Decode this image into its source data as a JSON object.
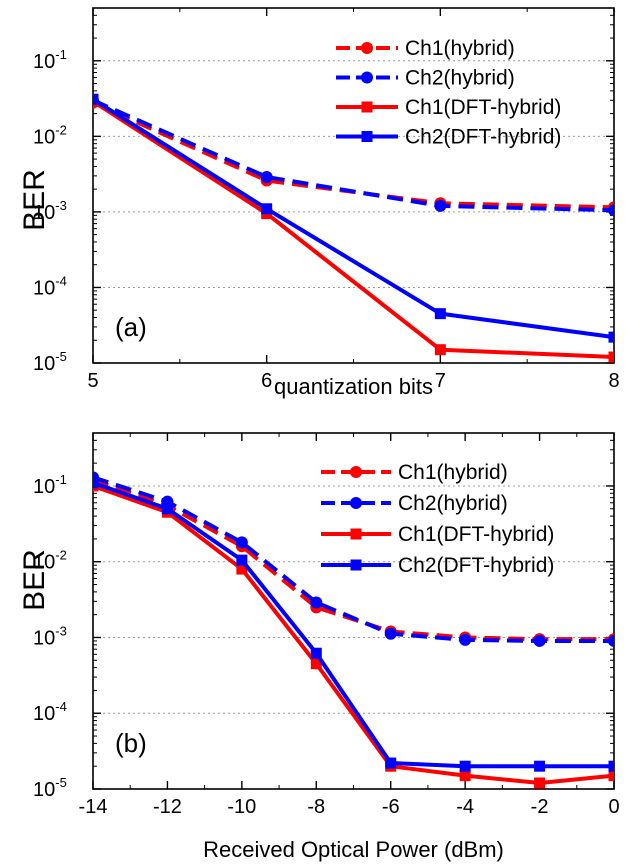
{
  "chart_data": [
    {
      "type": "line",
      "panel_label": "(a)",
      "xlabel": "quantization bits",
      "ylabel": "BER",
      "x_scale": "linear",
      "y_scale": "log",
      "xlim": [
        5,
        8
      ],
      "ylim": [
        1e-05,
        0.5
      ],
      "x_ticks": [
        5,
        6,
        7,
        8
      ],
      "x_tick_labels": [
        "5",
        "6",
        "7",
        "8"
      ],
      "y_ticks": [
        1e-05,
        0.0001,
        0.001,
        0.01,
        0.1
      ],
      "y_tick_labels": [
        [
          "10",
          "-5"
        ],
        [
          "10",
          "-4"
        ],
        [
          "10",
          "-3"
        ],
        [
          "10",
          "-2"
        ],
        [
          "10",
          "-1"
        ]
      ],
      "grid": "horizontal dotted at decades",
      "legend_position": "top-right",
      "x": [
        5,
        6,
        7,
        8
      ],
      "series": [
        {
          "name": "Ch1(hybrid)",
          "color": "#ff0000",
          "dash": "dashed",
          "marker": "circle",
          "values": [
            0.028,
            0.0026,
            0.0013,
            0.00115
          ]
        },
        {
          "name": "Ch2(hybrid)",
          "color": "#0000ff",
          "dash": "dashed",
          "marker": "circle",
          "values": [
            0.03,
            0.0029,
            0.0012,
            0.00105
          ]
        },
        {
          "name": "Ch1(DFT-hybrid)",
          "color": "#ff0000",
          "dash": "solid",
          "marker": "square",
          "values": [
            0.029,
            0.00095,
            1.5e-05,
            1.2e-05
          ]
        },
        {
          "name": "Ch2(DFT-hybrid)",
          "color": "#0000ff",
          "dash": "solid",
          "marker": "square",
          "values": [
            0.031,
            0.0011,
            4.5e-05,
            2.2e-05
          ]
        }
      ]
    },
    {
      "type": "line",
      "panel_label": "(b)",
      "xlabel": "Received Optical Power (dBm)",
      "ylabel": "BER",
      "x_scale": "linear",
      "y_scale": "log",
      "xlim": [
        -14,
        0
      ],
      "ylim": [
        1e-05,
        0.5
      ],
      "x_ticks": [
        -14,
        -12,
        -10,
        -8,
        -6,
        -4,
        -2,
        0
      ],
      "x_tick_labels": [
        "-14",
        "-12",
        "-10",
        "-8",
        "-6",
        "-4",
        "-2",
        "0"
      ],
      "y_ticks": [
        1e-05,
        0.0001,
        0.001,
        0.01,
        0.1
      ],
      "y_tick_labels": [
        [
          "10",
          "-5"
        ],
        [
          "10",
          "-4"
        ],
        [
          "10",
          "-3"
        ],
        [
          "10",
          "-2"
        ],
        [
          "10",
          "-1"
        ]
      ],
      "grid": "horizontal dotted at decades",
      "legend_position": "top-right",
      "x": [
        -14,
        -12,
        -10,
        -8,
        -6,
        -4,
        -2,
        0
      ],
      "series": [
        {
          "name": "Ch1(hybrid)",
          "color": "#ff0000",
          "dash": "dashed",
          "marker": "circle",
          "values": [
            0.12,
            0.055,
            0.016,
            0.0025,
            0.0012,
            0.001,
            0.00095,
            0.00095
          ]
        },
        {
          "name": "Ch2(hybrid)",
          "color": "#0000ff",
          "dash": "dashed",
          "marker": "circle",
          "values": [
            0.13,
            0.062,
            0.018,
            0.0029,
            0.00112,
            0.00093,
            0.0009,
            0.0009
          ]
        },
        {
          "name": "Ch1(DFT-hybrid)",
          "color": "#ff0000",
          "dash": "solid",
          "marker": "square",
          "values": [
            0.1,
            0.045,
            0.008,
            0.00045,
            2e-05,
            1.5e-05,
            1.2e-05,
            1.5e-05
          ]
        },
        {
          "name": "Ch2(DFT-hybrid)",
          "color": "#0000ff",
          "dash": "solid",
          "marker": "square",
          "values": [
            0.11,
            0.05,
            0.0105,
            0.00062,
            2.2e-05,
            2e-05,
            2e-05,
            2e-05
          ]
        }
      ]
    }
  ]
}
